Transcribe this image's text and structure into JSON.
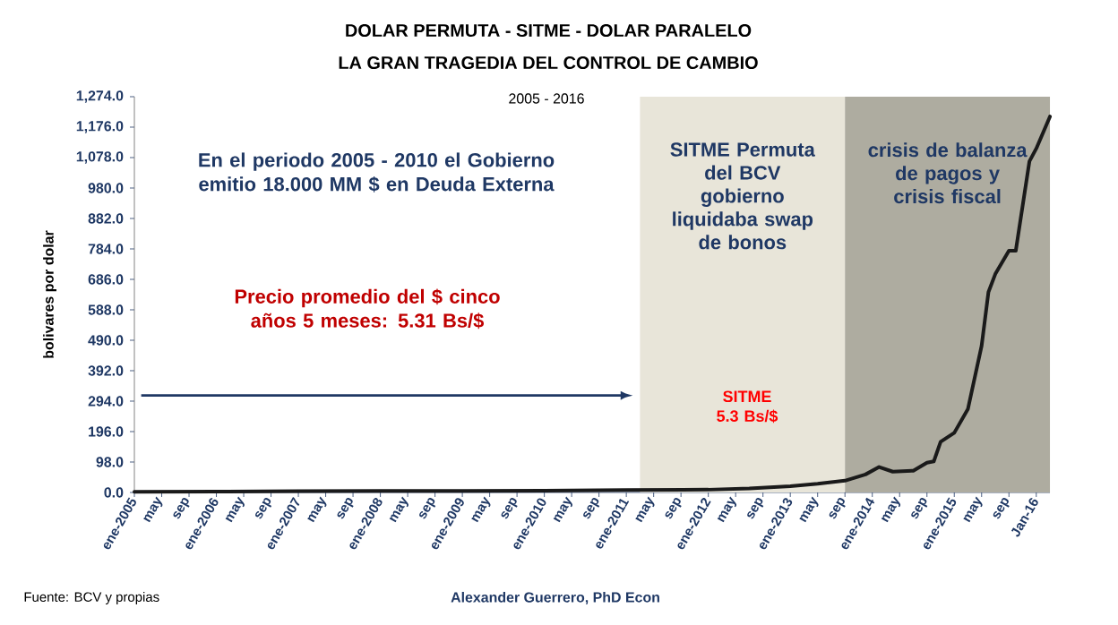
{
  "chart_data": {
    "type": "line",
    "title": "DOLAR  PERMUTA  -  SITME -  DOLAR PARALELO",
    "subtitle": "LA GRAN TRAGEDIA DEL CONTROL DE CAMBIO",
    "ylabel": "bolivares por dolar",
    "annotations": [
      "2005 - 2016",
      "En el periodo  2005 - 2010 el Gobierno emitio 18.000 MM $ en Deuda Externa",
      "Precio promedio del $ cinco años  5 meses:  5.31 Bs/$",
      "SITME 5.3 Bs/$",
      "Fuente: BCV y propias",
      "Alexander Guerrero, PhD Econ"
    ],
    "x": [
      "2005-01",
      "2006-01",
      "2007-01",
      "2008-01",
      "2009-01",
      "2010-01",
      "2011-01",
      "2012-01",
      "2012-07",
      "2013-01",
      "2013-05",
      "2013-09",
      "2013-12",
      "2014-02",
      "2014-04",
      "2014-07",
      "2014-09",
      "2014-10",
      "2014-11",
      "2015-01",
      "2015-03",
      "2015-05",
      "2015-06",
      "2015-07",
      "2015-09",
      "2015-10",
      "2015-12",
      "2016-01",
      "2016-03"
    ],
    "series": [
      {
        "color": "#1a1a1a",
        "values": [
          2,
          3,
          4,
          5,
          5,
          6,
          8,
          9,
          13,
          20,
          28,
          38,
          58,
          82,
          67,
          70,
          96,
          100,
          163,
          192,
          269,
          472,
          645,
          703,
          778,
          778,
          1066,
          1107,
          1210
        ]
      }
    ],
    "xlim": [
      "2005-01",
      "2016-03"
    ],
    "ylim": [
      0,
      1274
    ],
    "xticks": [
      {
        "value": "2005-01",
        "label": "ene-2005"
      },
      {
        "value": "2005-05",
        "label": "may"
      },
      {
        "value": "2005-09",
        "label": "sep"
      },
      {
        "value": "2006-01",
        "label": "ene-2006"
      },
      {
        "value": "2006-05",
        "label": "may"
      },
      {
        "value": "2006-09",
        "label": "sep"
      },
      {
        "value": "2007-01",
        "label": "ene-2007"
      },
      {
        "value": "2007-05",
        "label": "may"
      },
      {
        "value": "2007-09",
        "label": "sep"
      },
      {
        "value": "2008-01",
        "label": "ene-2008"
      },
      {
        "value": "2008-05",
        "label": "may"
      },
      {
        "value": "2008-09",
        "label": "sep"
      },
      {
        "value": "2009-01",
        "label": "ene-2009"
      },
      {
        "value": "2009-05",
        "label": "may"
      },
      {
        "value": "2009-09",
        "label": "sep"
      },
      {
        "value": "2010-01",
        "label": "ene-2010"
      },
      {
        "value": "2010-05",
        "label": "may"
      },
      {
        "value": "2010-09",
        "label": "sep"
      },
      {
        "value": "2011-01",
        "label": "ene-2011"
      },
      {
        "value": "2011-05",
        "label": "may"
      },
      {
        "value": "2011-09",
        "label": "sep"
      },
      {
        "value": "2012-01",
        "label": "ene-2012"
      },
      {
        "value": "2012-05",
        "label": "may"
      },
      {
        "value": "2012-09",
        "label": "sep"
      },
      {
        "value": "2013-01",
        "label": "ene-2013"
      },
      {
        "value": "2013-05",
        "label": "may"
      },
      {
        "value": "2013-09",
        "label": "sep"
      },
      {
        "value": "2014-01",
        "label": "ene-2014"
      },
      {
        "value": "2014-05",
        "label": "may"
      },
      {
        "value": "2014-09",
        "label": "sep"
      },
      {
        "value": "2015-01",
        "label": "ene-2015"
      },
      {
        "value": "2015-05",
        "label": "may"
      },
      {
        "value": "2015-09",
        "label": "sep"
      },
      {
        "value": "2016-01",
        "label": "Jan-16"
      }
    ],
    "yticks": [
      {
        "value": 0,
        "label": "0.0"
      },
      {
        "value": 98,
        "label": "98.0"
      },
      {
        "value": 196,
        "label": "196.0"
      },
      {
        "value": 294,
        "label": "294.0"
      },
      {
        "value": 392,
        "label": "392.0"
      },
      {
        "value": 490,
        "label": "490.0"
      },
      {
        "value": 588,
        "label": "588.0"
      },
      {
        "value": 686,
        "label": "686.0"
      },
      {
        "value": 784,
        "label": "784.0"
      },
      {
        "value": 882,
        "label": "882.0"
      },
      {
        "value": 980,
        "label": "980.0"
      },
      {
        "value": 1078,
        "label": "1,078.0"
      },
      {
        "value": 1176,
        "label": "1,176.0"
      },
      {
        "value": 1274,
        "label": "1,274.0"
      }
    ],
    "bands": [
      {
        "axis": "x",
        "from": "2011-03",
        "to": "2013-09",
        "label": "SITME Permuta del BCV gobierno liquidaba swap de bonos",
        "color": "#e8e5d9"
      },
      {
        "axis": "x",
        "from": "2013-09",
        "to": "2016-03",
        "label": "crisis de balanza de pagos y crisis fiscal",
        "color": "#aeaca0"
      }
    ],
    "grid": false,
    "marker": "none",
    "line_style": "solid"
  }
}
